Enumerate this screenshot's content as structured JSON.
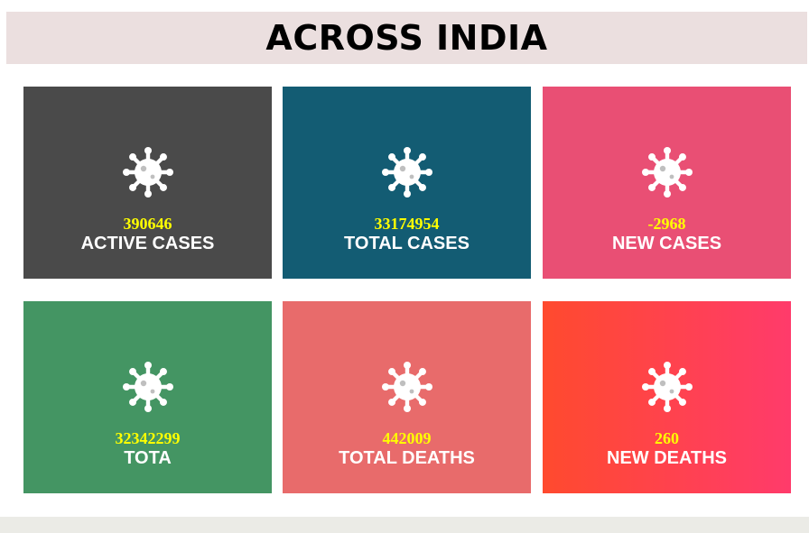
{
  "header": {
    "title": "ACROSS INDIA"
  },
  "cards": [
    {
      "value": "390646",
      "label": "ACTIVE CASES",
      "icon": "virus-icon",
      "color": "#4a4a4a"
    },
    {
      "value": "33174954",
      "label": "TOTAL CASES",
      "icon": "virus-icon",
      "color": "#135c73"
    },
    {
      "value": "-2968",
      "label": "NEW CASES",
      "icon": "virus-icon",
      "color": "#e94f74"
    },
    {
      "value": "32342299",
      "label": "TOTA",
      "icon": "virus-icon",
      "color": "#449563"
    },
    {
      "value": "442009",
      "label": "TOTAL DEATHS",
      "icon": "virus-icon",
      "color": "#e86b6b"
    },
    {
      "value": "260",
      "label": "NEW DEATHS",
      "icon": "virus-icon",
      "color": "#ff4050"
    }
  ],
  "colors": {
    "header_bg": "#ebdfdf",
    "value_text": "#ffff00",
    "label_text": "#ffffff",
    "footer_bg": "#ebebe6"
  }
}
